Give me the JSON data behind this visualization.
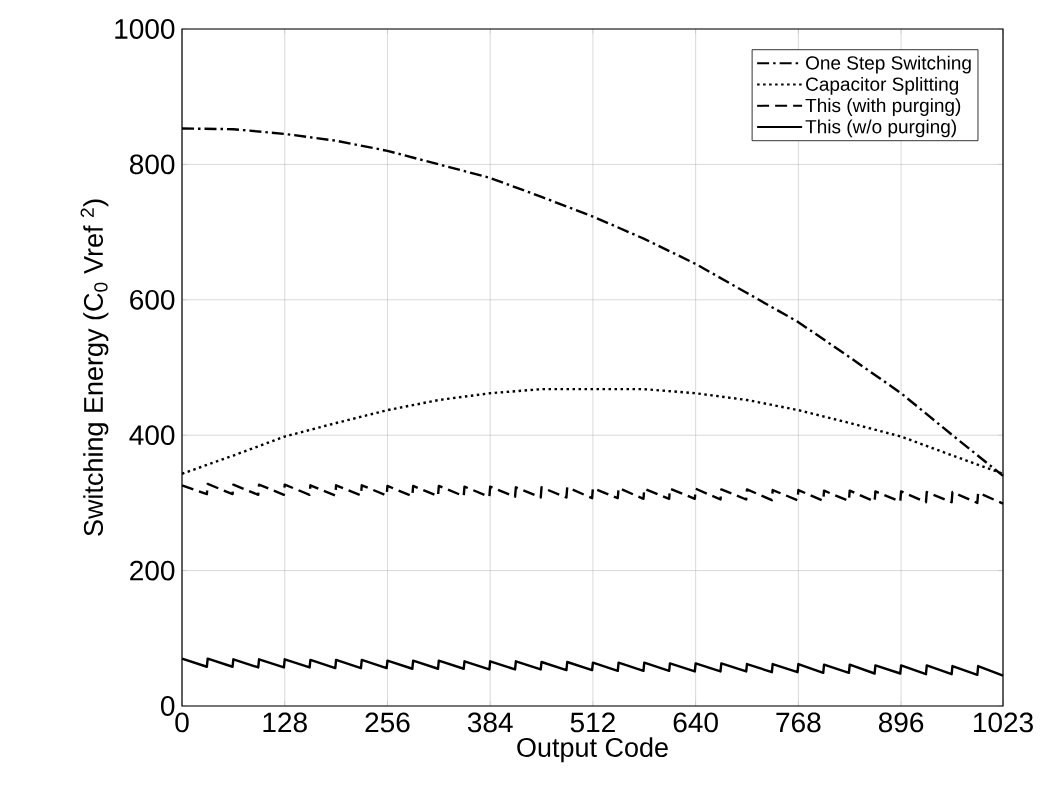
{
  "chart_data": {
    "type": "line",
    "xlabel": "Output Code",
    "ylabel": "Switching Energy (C$_{0}$ Vref $^{2}$)",
    "xlim": [
      0,
      1023
    ],
    "ylim": [
      0,
      1000
    ],
    "xticks": [
      0,
      128,
      256,
      384,
      512,
      640,
      768,
      896,
      1023
    ],
    "yticks": [
      0,
      200,
      400,
      600,
      800,
      1000
    ],
    "grid": true,
    "legend": "top right",
    "series": [
      {
        "name": "One Step Switching",
        "color": "#000000",
        "line_style": "dashdot",
        "x": [
          0,
          64,
          128,
          192,
          256,
          320,
          384,
          448,
          512,
          576,
          640,
          704,
          768,
          832,
          896,
          960,
          1023
        ],
        "values": [
          853,
          852,
          845,
          835,
          820,
          800,
          780,
          752,
          723,
          690,
          653,
          610,
          567,
          515,
          462,
          400,
          340
        ]
      },
      {
        "name": "Capacitor Splitting",
        "color": "#000000",
        "line_style": "dotted",
        "x": [
          0,
          64,
          128,
          192,
          256,
          320,
          384,
          448,
          512,
          576,
          640,
          704,
          768,
          832,
          896,
          960,
          1023
        ],
        "values": [
          343,
          370,
          398,
          418,
          437,
          452,
          462,
          468,
          468,
          468,
          462,
          452,
          437,
          418,
          398,
          370,
          343
        ]
      },
      {
        "name": "This (with purging)",
        "color": "#000000",
        "line_style": "dashed",
        "x": [
          0,
          31,
          32,
          63,
          64,
          95,
          96,
          127,
          128,
          159,
          160,
          191,
          192,
          223,
          224,
          255,
          256,
          287,
          288,
          319,
          320,
          351,
          352,
          383,
          384,
          415,
          416,
          447,
          448,
          479,
          480,
          511,
          512,
          543,
          544,
          575,
          576,
          607,
          608,
          639,
          640,
          671,
          672,
          703,
          704,
          735,
          736,
          767,
          768,
          799,
          800,
          831,
          832,
          863,
          864,
          895,
          896,
          927,
          928,
          959,
          960,
          991,
          992,
          1023
        ],
        "values": [
          326,
          313,
          328,
          313,
          327,
          312,
          327,
          312,
          327,
          312,
          326,
          311,
          326,
          311,
          326,
          311,
          325,
          310,
          325,
          310,
          325,
          310,
          324,
          309,
          324,
          309,
          323,
          308,
          323,
          308,
          323,
          307,
          322,
          307,
          322,
          306,
          321,
          306,
          321,
          306,
          321,
          305,
          320,
          305,
          320,
          304,
          319,
          304,
          319,
          303,
          318,
          303,
          318,
          302,
          317,
          302,
          317,
          301,
          316,
          301,
          316,
          300,
          315,
          299
        ]
      },
      {
        "name": "This (w/o purging)",
        "color": "#000000",
        "line_style": "solid",
        "x": [
          0,
          31,
          32,
          63,
          64,
          95,
          96,
          127,
          128,
          159,
          160,
          191,
          192,
          223,
          224,
          255,
          256,
          287,
          288,
          319,
          320,
          351,
          352,
          383,
          384,
          415,
          416,
          447,
          448,
          479,
          480,
          511,
          512,
          543,
          544,
          575,
          576,
          607,
          608,
          639,
          640,
          671,
          672,
          703,
          704,
          735,
          736,
          767,
          768,
          799,
          800,
          831,
          832,
          863,
          864,
          895,
          896,
          927,
          928,
          959,
          960,
          991,
          992,
          1023
        ],
        "values": [
          70,
          58,
          70,
          58,
          69,
          57,
          69,
          57,
          69,
          57,
          68,
          56,
          68,
          56,
          68,
          56,
          67,
          55,
          67,
          55,
          67,
          55,
          66,
          54,
          66,
          54,
          66,
          54,
          65,
          53,
          65,
          53,
          64,
          52,
          64,
          52,
          64,
          52,
          63,
          51,
          63,
          51,
          63,
          51,
          62,
          50,
          62,
          50,
          62,
          49,
          61,
          49,
          61,
          48,
          60,
          48,
          60,
          47,
          60,
          47,
          59,
          46,
          59,
          45
        ]
      }
    ]
  }
}
